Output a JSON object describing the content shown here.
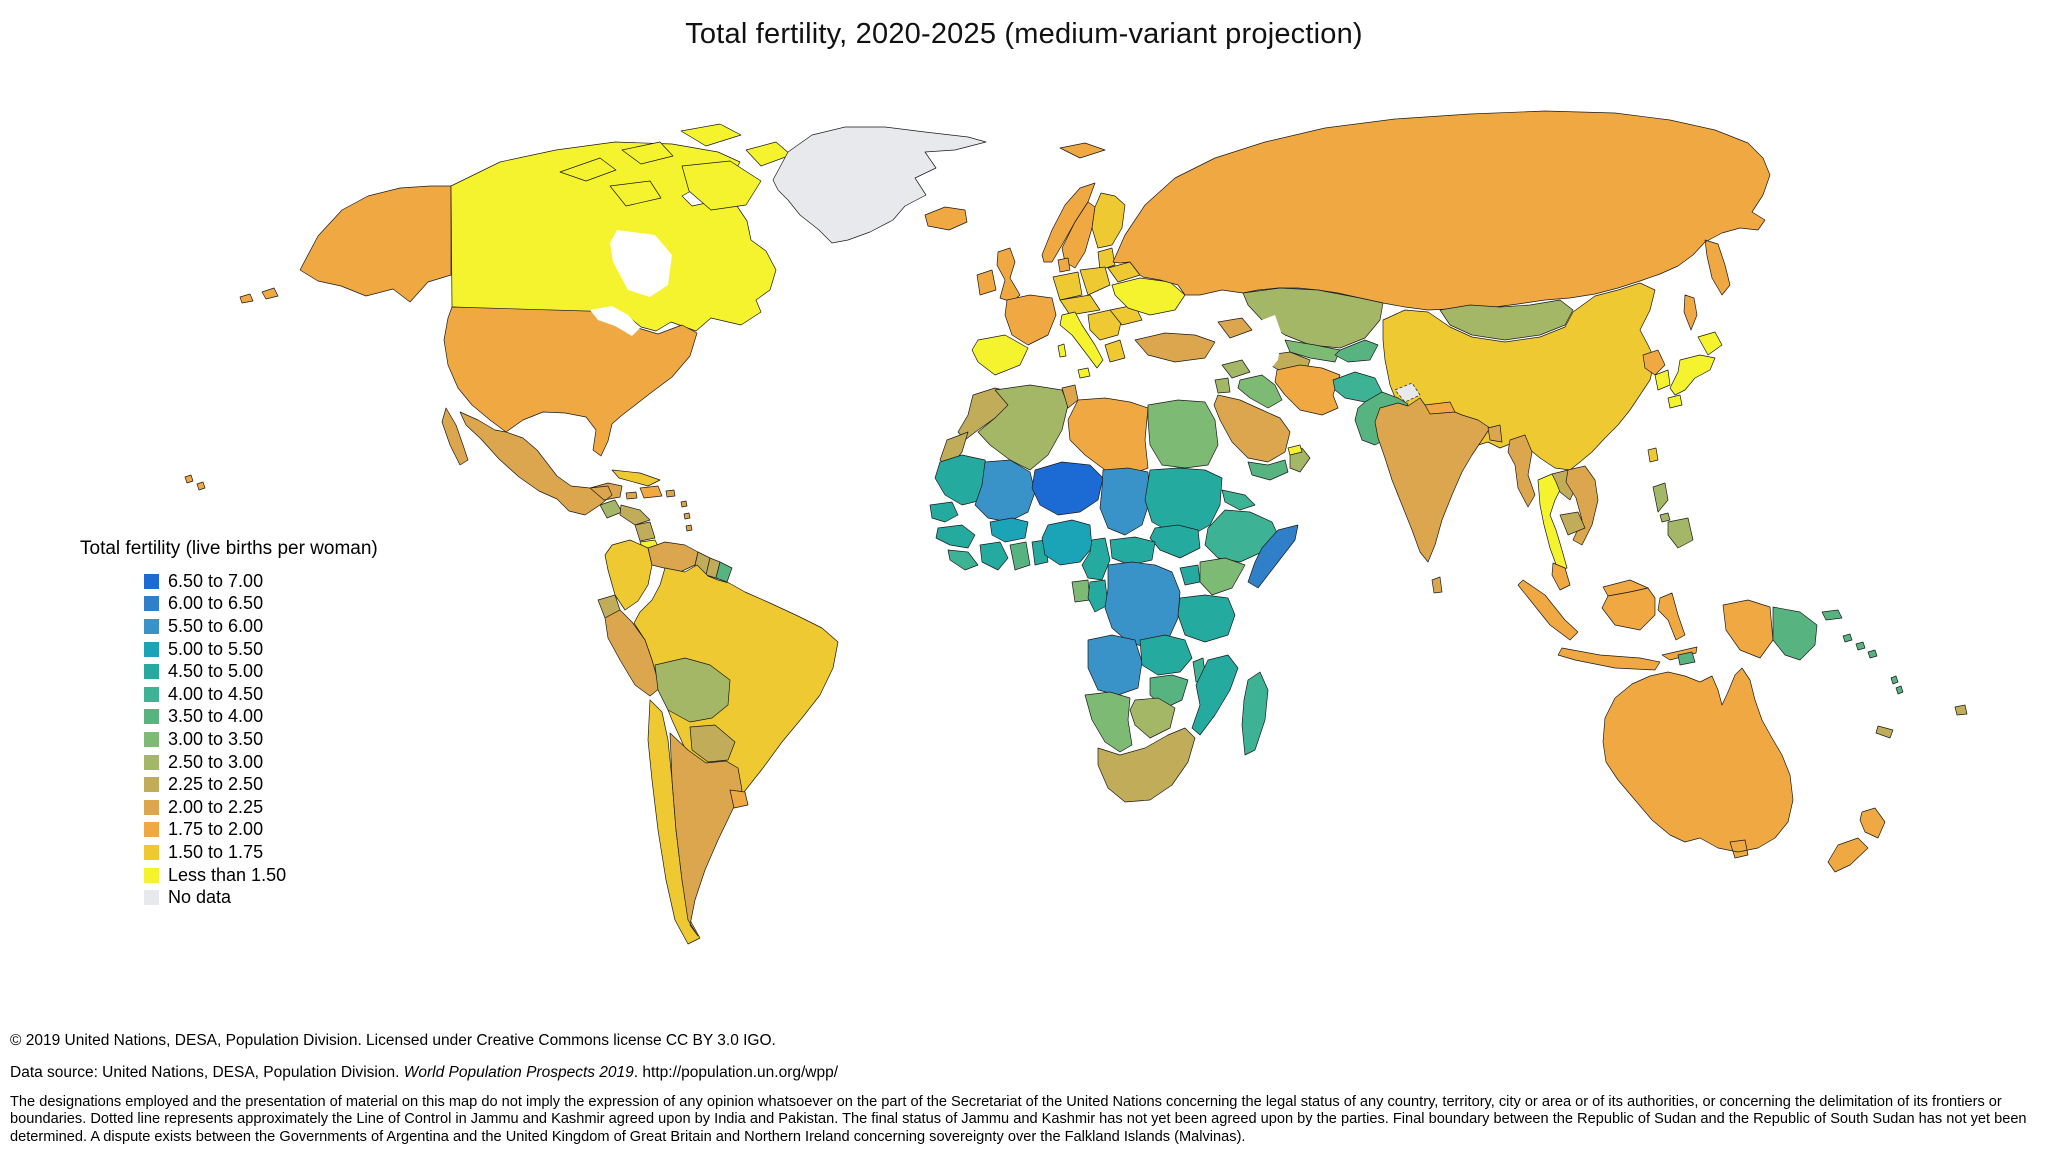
{
  "title": "Total fertility, 2020-2025 (medium-variant projection)",
  "legend": {
    "title": "Total fertility (live births per woman)",
    "items": [
      {
        "label": "6.50 to 7.00",
        "color": "#1c6bd4"
      },
      {
        "label": "6.00 to 6.50",
        "color": "#2f80c8"
      },
      {
        "label": "5.50 to 6.00",
        "color": "#3a93c8"
      },
      {
        "label": "5.00 to 5.50",
        "color": "#1ba4b8"
      },
      {
        "label": "4.50 to 5.00",
        "color": "#25aaa0"
      },
      {
        "label": "4.00 to 4.50",
        "color": "#3db294"
      },
      {
        "label": "3.50 to 4.00",
        "color": "#57b481"
      },
      {
        "label": "3.00 to 3.50",
        "color": "#7dba73"
      },
      {
        "label": "2.50 to 3.00",
        "color": "#a4b767"
      },
      {
        "label": "2.25 to 2.50",
        "color": "#c1ad59"
      },
      {
        "label": "2.00 to 2.25",
        "color": "#dba64e"
      },
      {
        "label": "1.75 to 2.00",
        "color": "#f0a843"
      },
      {
        "label": "1.50 to 1.75",
        "color": "#eec931"
      },
      {
        "label": "Less than 1.50",
        "color": "#f4f32d"
      },
      {
        "label": "No data",
        "color": "#e8e9ec"
      }
    ]
  },
  "footer": {
    "line1": "© 2019 United Nations, DESA, Population Division. Licensed under Creative Commons license CC BY 3.0 IGO.",
    "line2_prefix": "Data source: United Nations, DESA, Population Division. ",
    "line2_italic": "World Population Prospects 2019",
    "line2_suffix": ". http://population.un.org/wpp/",
    "disclaimer": "The designations employed and the presentation of material on this map do not imply the expression of any opinion whatsoever on the part of the Secretariat of the United Nations concerning the legal status of any country, territory, city or area or of its authorities, or concerning the delimitation of its frontiers or boundaries. Dotted line represents approximately the Line of Control in Jammu and Kashmir agreed upon by India and Pakistan. The final status of Jammu and Kashmir has not yet been agreed upon by the parties. Final boundary between the Republic of Sudan and the Republic of South Sudan has not yet been determined. A dispute exists between the Governments of Argentina and the United Kingdom of Great Britain and Northern Ireland concerning sovereignty over the Falkland Islands (Malvinas)."
  },
  "map": {
    "water_color": "#ffffff",
    "countries": {
      "alaska": 11,
      "canada": 13,
      "canada_arctic_islands": 13,
      "greenland": 14,
      "iceland": 11,
      "usa": 11,
      "mexico": 10,
      "guatemala": 8,
      "honduras": 9,
      "nicaragua": 9,
      "costa_rica": 13,
      "panama": 9,
      "cuba": 12,
      "jamaica": 10,
      "hispaniola": 11,
      "puerto_rico": 10,
      "lesser_antilles": 10,
      "hawaii": 11,
      "colombia": 12,
      "venezuela": 10,
      "guyana": 9,
      "suriname": 9,
      "french_guiana": 6,
      "ecuador": 9,
      "peru": 10,
      "brazil": 12,
      "bolivia": 8,
      "paraguay": 9,
      "chile": 12,
      "argentina": 10,
      "uruguay": 11,
      "ireland": 11,
      "uk": 11,
      "norway": 11,
      "svalbard": 11,
      "sweden": 11,
      "finland": 12,
      "denmark": 11,
      "baltics": 12,
      "poland": 12,
      "germany": 12,
      "central_europe": 12,
      "france": 11,
      "spain": 13,
      "italy": 13,
      "balkans": 12,
      "greece": 12,
      "romania": 12,
      "ukraine": 13,
      "belarus": 12,
      "russia": 11,
      "turkey": 10,
      "caucasus": 10,
      "kazakhstan": 8,
      "uzbekistan": 7,
      "turkmenistan": 9,
      "kyrgyz_tajik": 6,
      "iran": 11,
      "iraq": 7,
      "syria": 8,
      "jordan": 8,
      "saudi_arabia": 10,
      "yemen": 6,
      "oman": 8,
      "uae": 13,
      "mongolia": 8,
      "china": 12,
      "taiwan": 12,
      "kashmir": 14,
      "afghanistan": 5,
      "pakistan": 6,
      "india": 10,
      "nepal": 11,
      "bangladesh": 10,
      "sri_lanka": 10,
      "myanmar": 10,
      "thailand": 13,
      "laos": 9,
      "vietnam": 10,
      "cambodia": 9,
      "malaysia": 11,
      "indonesia": 11,
      "timor": 6,
      "philippines": 8,
      "papua_new_guinea": 6,
      "north_korea": 11,
      "south_korea": 13,
      "japan": 13,
      "morocco": 9,
      "western_sahara": 9,
      "algeria": 8,
      "tunisia": 10,
      "libya": 11,
      "egypt": 7,
      "mauritania": 4,
      "senegal": 4,
      "mali": 2,
      "niger": 0,
      "chad": 2,
      "sudan": 4,
      "eritrea": 5,
      "ethiopia": 5,
      "somalia": 1,
      "south_sudan": 4,
      "guinea": 4,
      "sierra_leone_liberia": 5,
      "cote_divoire": 4,
      "ghana": 6,
      "togo_benin": 4,
      "burkina_faso": 3,
      "nigeria": 3,
      "cameroon": 4,
      "car": 4,
      "gabon": 7,
      "congo": 4,
      "drc": 2,
      "uganda": 4,
      "kenya": 7,
      "tanzania": 4,
      "angola": 2,
      "zambia": 4,
      "malawi": 5,
      "mozambique": 4,
      "zimbabwe": 6,
      "botswana": 8,
      "namibia": 7,
      "south_africa": 9,
      "madagascar": 5,
      "australia": 11,
      "new_zealand": 11,
      "solomon_islands": 6,
      "vanuatu": 6,
      "new_caledonia": 9,
      "fiji": 9
    }
  }
}
